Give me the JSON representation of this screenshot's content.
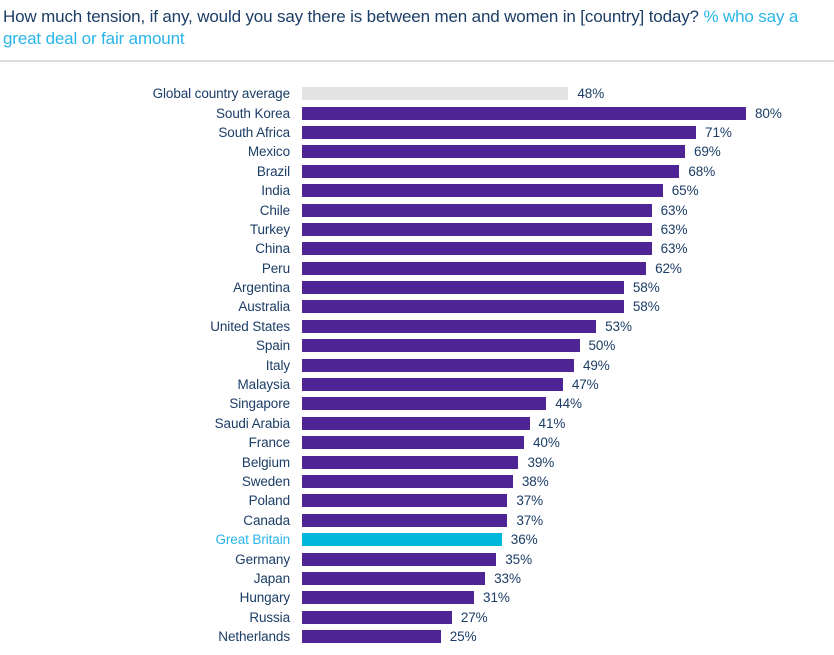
{
  "title": {
    "main": "How much tension, if any, would you say there is between men and women in [country] today?",
    "accent": "% who say a great deal or fair amount"
  },
  "colors": {
    "navy_text": "#1c3d66",
    "accent_text": "#29b5e8",
    "bar_default": "#4f2495",
    "bar_highlight": "#00b8dc",
    "bar_average": "#e3e3e3"
  },
  "chart_data": {
    "type": "bar",
    "orientation": "horizontal",
    "title": "How much tension, if any, would you say there is between men and women in [country] today? % who say a great deal or fair amount",
    "xlabel": "",
    "ylabel": "",
    "xlim": [
      0,
      100
    ],
    "grid": false,
    "legend": false,
    "value_suffix": "%",
    "rows": [
      {
        "label": "Global country average",
        "value": 48,
        "type": "average"
      },
      {
        "label": "South Korea",
        "value": 80,
        "type": "default"
      },
      {
        "label": "South Africa",
        "value": 71,
        "type": "default"
      },
      {
        "label": "Mexico",
        "value": 69,
        "type": "default"
      },
      {
        "label": "Brazil",
        "value": 68,
        "type": "default"
      },
      {
        "label": "India",
        "value": 65,
        "type": "default"
      },
      {
        "label": "Chile",
        "value": 63,
        "type": "default"
      },
      {
        "label": "Turkey",
        "value": 63,
        "type": "default"
      },
      {
        "label": "China",
        "value": 63,
        "type": "default"
      },
      {
        "label": "Peru",
        "value": 62,
        "type": "default"
      },
      {
        "label": "Argentina",
        "value": 58,
        "type": "default"
      },
      {
        "label": "Australia",
        "value": 58,
        "type": "default"
      },
      {
        "label": "United States",
        "value": 53,
        "type": "default"
      },
      {
        "label": "Spain",
        "value": 50,
        "type": "default"
      },
      {
        "label": "Italy",
        "value": 49,
        "type": "default"
      },
      {
        "label": "Malaysia",
        "value": 47,
        "type": "default"
      },
      {
        "label": "Singapore",
        "value": 44,
        "type": "default"
      },
      {
        "label": "Saudi Arabia",
        "value": 41,
        "type": "default"
      },
      {
        "label": "France",
        "value": 40,
        "type": "default"
      },
      {
        "label": "Belgium",
        "value": 39,
        "type": "default"
      },
      {
        "label": "Sweden",
        "value": 38,
        "type": "default"
      },
      {
        "label": "Poland",
        "value": 37,
        "type": "default"
      },
      {
        "label": "Canada",
        "value": 37,
        "type": "default"
      },
      {
        "label": "Great Britain",
        "value": 36,
        "type": "highlight"
      },
      {
        "label": "Germany",
        "value": 35,
        "type": "default"
      },
      {
        "label": "Japan",
        "value": 33,
        "type": "default"
      },
      {
        "label": "Hungary",
        "value": 31,
        "type": "default"
      },
      {
        "label": "Russia",
        "value": 27,
        "type": "default"
      },
      {
        "label": "Netherlands",
        "value": 25,
        "type": "default"
      }
    ]
  }
}
